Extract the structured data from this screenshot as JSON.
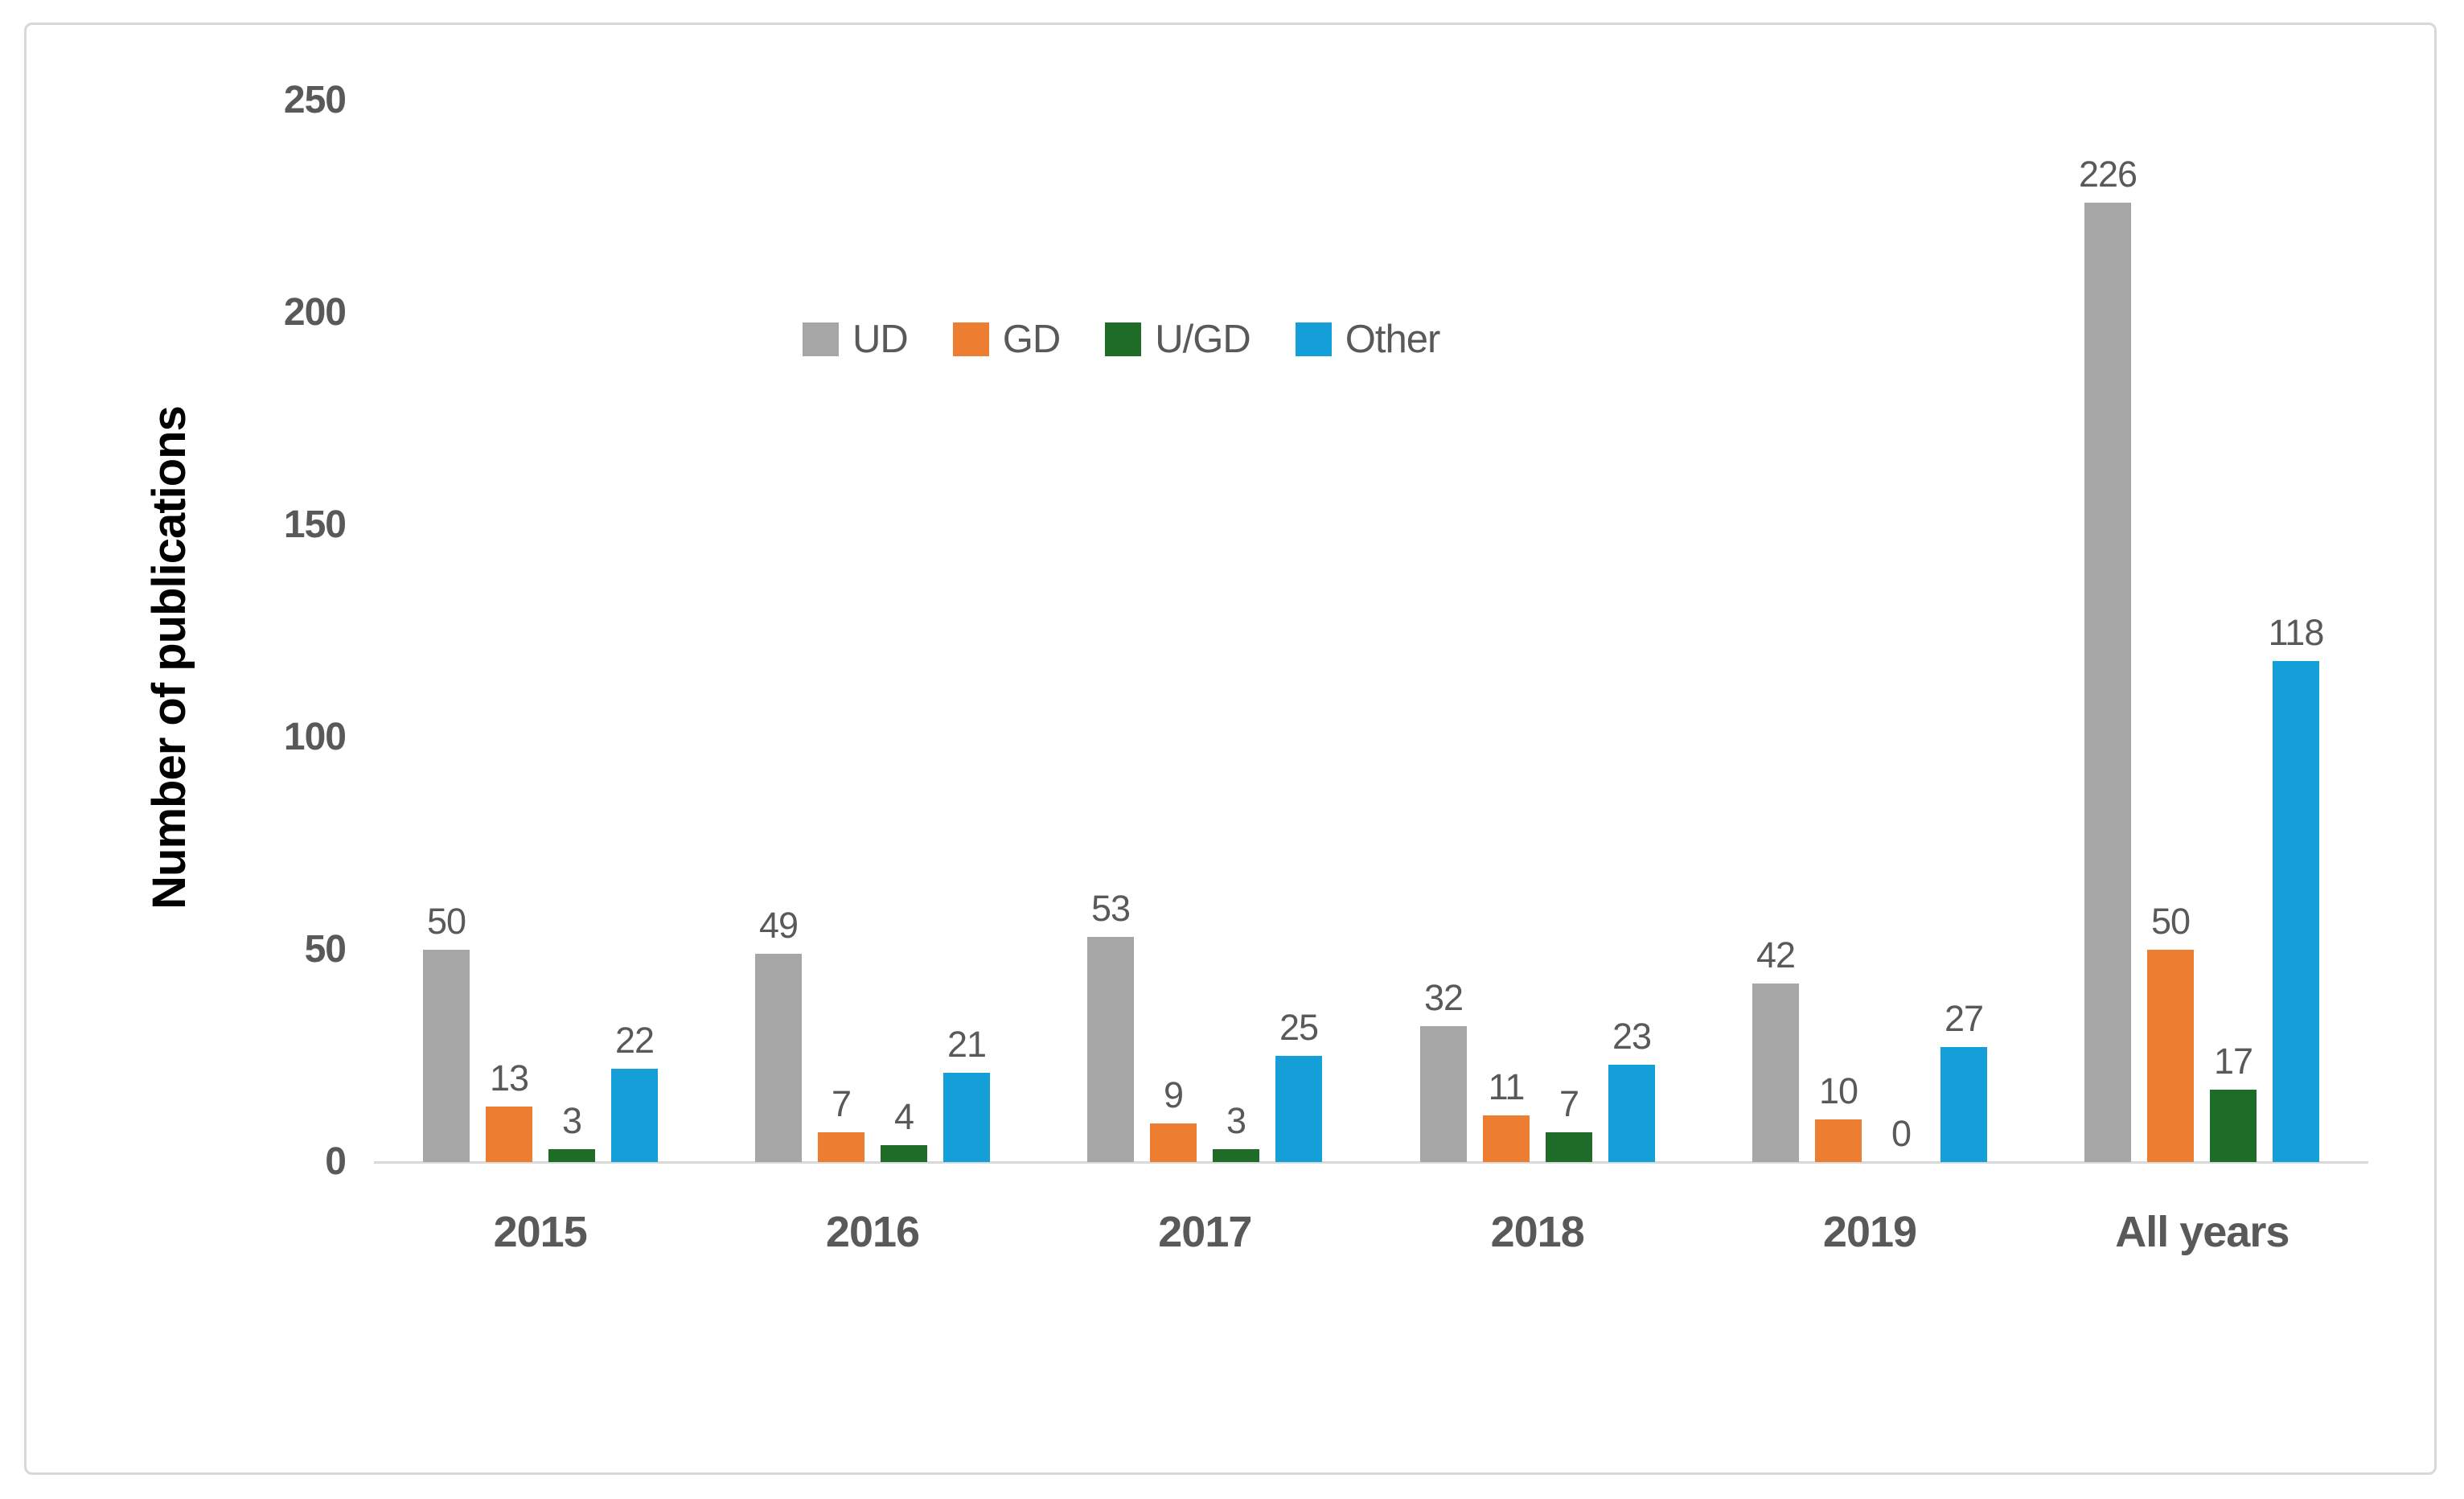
{
  "frame": {
    "background_color": "#ffffff",
    "border_color": "#d8d8d8"
  },
  "chart_data": {
    "type": "bar",
    "title": "",
    "ylabel": "Number of publications",
    "xlabel": "",
    "categories": [
      "2015",
      "2016",
      "2017",
      "2018",
      "2019",
      "All years"
    ],
    "series": [
      {
        "name": "UD",
        "color": "#a6a6a6",
        "values": [
          50,
          49,
          53,
          32,
          42,
          226
        ]
      },
      {
        "name": "GD",
        "color": "#ed7d31",
        "values": [
          13,
          7,
          9,
          11,
          10,
          50
        ]
      },
      {
        "name": "U/GD",
        "color": "#1e6c28",
        "values": [
          3,
          4,
          3,
          7,
          0,
          17
        ]
      },
      {
        "name": "Other",
        "color": "#159fd9",
        "values": [
          22,
          21,
          25,
          23,
          27,
          118
        ]
      }
    ],
    "ylim": [
      0,
      250
    ],
    "yticks": [
      0,
      50,
      100,
      150,
      200,
      250
    ],
    "grid": false,
    "data_labels": true,
    "legend_position": "top-center",
    "colors": {
      "axis_line": "#d9d9d9",
      "tick_label": "#595959",
      "data_label": "#595959",
      "category_label": "#595959",
      "legend_label": "#595959",
      "ylabel_color": "#000000"
    }
  }
}
